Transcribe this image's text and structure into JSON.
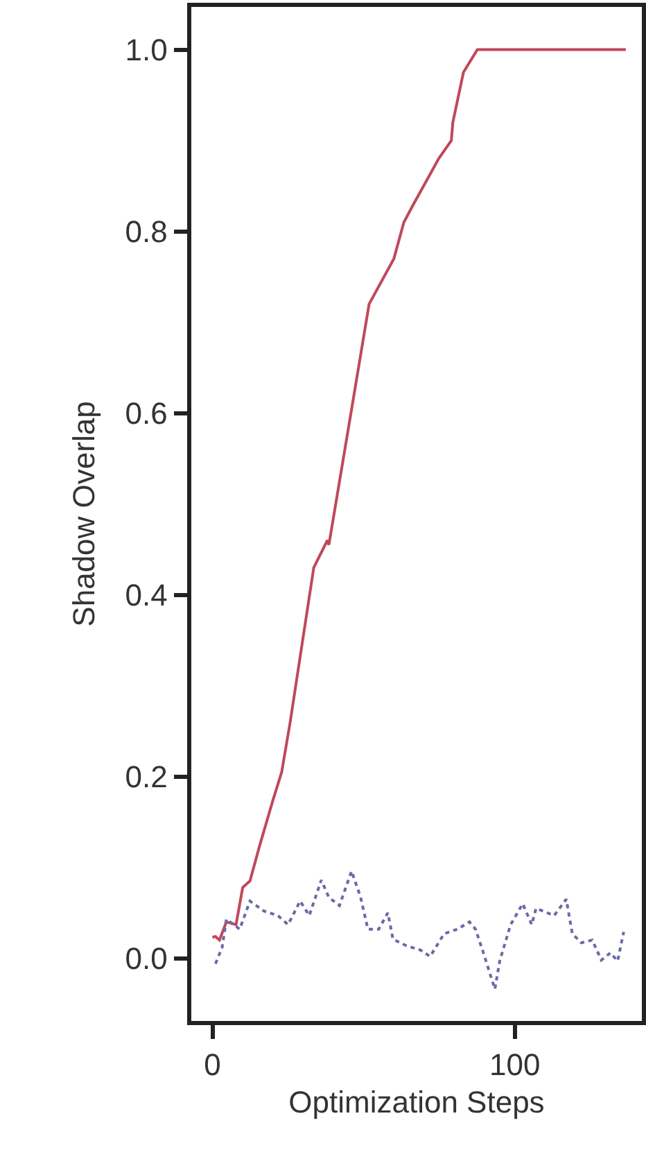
{
  "chart_data": {
    "type": "line",
    "xlabel": "Optimization Steps",
    "ylabel": "Shadow Overlap",
    "xlim": [
      -7,
      142
    ],
    "ylim": [
      -0.069,
      1.047
    ],
    "xticks": [
      0,
      100
    ],
    "yticks": [
      {
        "value": 0,
        "label": "0.0"
      },
      0.2,
      0.4,
      0.6,
      0.8,
      {
        "value": 1,
        "label": "1.0"
      }
    ],
    "grid": false,
    "marker": "none",
    "series": [
      {
        "color": "#c0485a",
        "line_style": "solid",
        "x": [
          0,
          1,
          2.3,
          4.6,
          7.8,
          10,
          12.4,
          15.6,
          20,
          22.9,
          25.7,
          33.5,
          38,
          38.5,
          46.8,
          51.8,
          60,
          63.3,
          66.5,
          71.5,
          74.8,
          79,
          79.5,
          83,
          87.6,
          136.7
        ],
        "values": [
          0.023,
          0.024,
          0.02,
          0.04,
          0.037,
          0.078,
          0.085,
          0.124,
          0.174,
          0.205,
          0.26,
          0.43,
          0.46,
          0.455,
          0.62,
          0.72,
          0.77,
          0.81,
          0.83,
          0.86,
          0.88,
          0.9,
          0.92,
          0.975,
          1.0,
          1.0
        ]
      },
      {
        "color": "#6a6aa8",
        "line_style": "dotted",
        "x": [
          1,
          3.2,
          4.6,
          9,
          12.4,
          17,
          21.6,
          25,
          29,
          32,
          36,
          38.5,
          42,
          46,
          49,
          51.4,
          55,
          58,
          59.7,
          64,
          68.8,
          72,
          76.6,
          81,
          85,
          87,
          89.6,
          93.4,
          95,
          98.6,
          102.6,
          105.6,
          107,
          113,
          117,
          119,
          122,
          125.6,
          128.6,
          131.6,
          134,
          136
        ],
        "values": [
          -0.006,
          0.012,
          0.043,
          0.032,
          0.063,
          0.052,
          0.047,
          0.037,
          0.063,
          0.047,
          0.086,
          0.067,
          0.058,
          0.096,
          0.067,
          0.032,
          0.032,
          0.05,
          0.021,
          0.014,
          0.009,
          0.002,
          0.027,
          0.032,
          0.04,
          0.032,
          0.006,
          -0.034,
          -0.003,
          0.037,
          0.06,
          0.037,
          0.055,
          0.047,
          0.065,
          0.027,
          0.017,
          0.02,
          -0.002,
          0.006,
          -0.003,
          0.029
        ]
      }
    ]
  }
}
